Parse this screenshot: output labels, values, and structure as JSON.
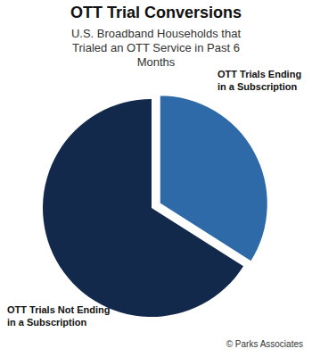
{
  "chart_data": {
    "type": "pie",
    "title": "OTT Trial Conversions",
    "subtitle": "U.S. Broadband Households that Trialed an OTT Service in Past 6 Months",
    "categories": [
      "OTT Trials Ending in a Subscription",
      "OTT Trials Not Ending in a Subscription"
    ],
    "values": [
      34,
      66
    ],
    "colors": [
      "#2e6aa8",
      "#13294b"
    ],
    "annotations": [
      "© Parks Associates"
    ]
  }
}
